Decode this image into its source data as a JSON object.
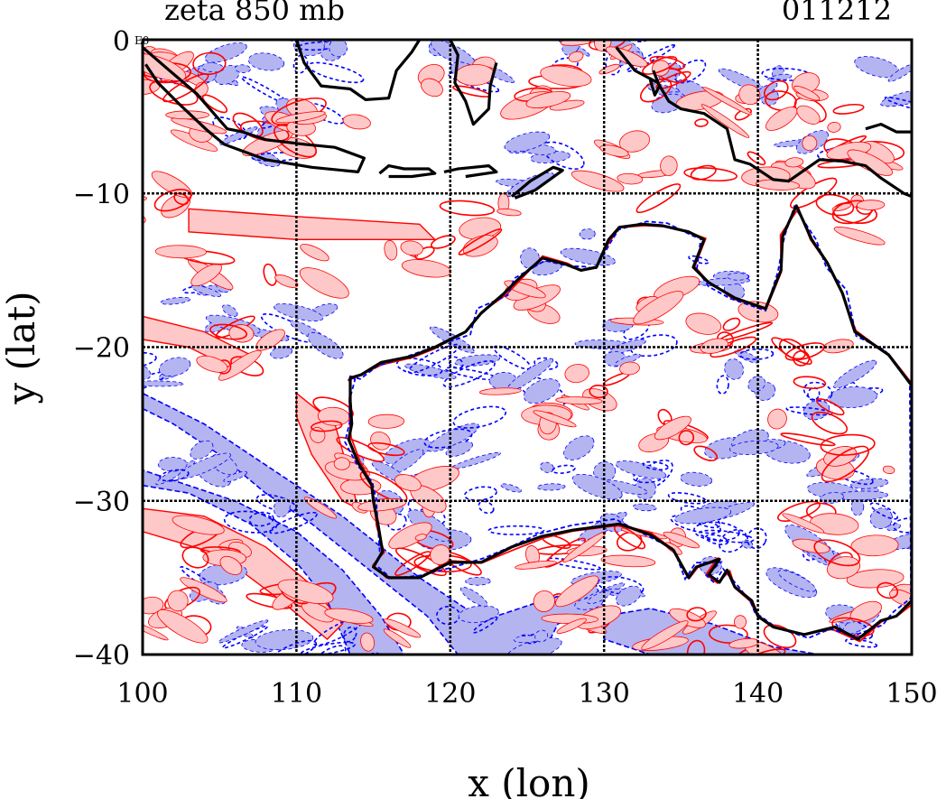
{
  "chart_data": {
    "type": "heatmap",
    "title_left": "zeta 850 mb",
    "title_right": "011212",
    "corner_label": "0",
    "corner_tag": "E0",
    "xlabel": "x (lon)",
    "ylabel": "y (lat)",
    "xlim": [
      100,
      150
    ],
    "ylim": [
      -40,
      0
    ],
    "xticks": [
      100,
      110,
      120,
      130,
      140,
      150
    ],
    "yticks": [
      -10,
      -20,
      -30,
      -40
    ],
    "xtick_labels": [
      "100",
      "110",
      "120",
      "130",
      "140",
      "150"
    ],
    "ytick_labels": [
      "−10",
      "−20",
      "−30",
      "−40"
    ],
    "grid": true,
    "colors": {
      "positive_fill": "#ffc8c8",
      "positive_line": "#ff0000",
      "negative_fill": "#b4b4f0",
      "negative_line": "#0000ff",
      "coastline": "#000000",
      "grid": "#000000"
    },
    "coastline_lonlat": [
      [
        113.5,
        -22.0
      ],
      [
        114.2,
        -21.8
      ],
      [
        115.5,
        -21.0
      ],
      [
        117.5,
        -20.6
      ],
      [
        119.0,
        -20.0
      ],
      [
        121.0,
        -19.0
      ],
      [
        122.0,
        -17.8
      ],
      [
        123.5,
        -16.5
      ],
      [
        124.5,
        -15.5
      ],
      [
        126.0,
        -14.2
      ],
      [
        127.5,
        -14.6
      ],
      [
        128.5,
        -15.0
      ],
      [
        129.5,
        -14.8
      ],
      [
        130.3,
        -13.0
      ],
      [
        131.0,
        -12.2
      ],
      [
        132.5,
        -12.0
      ],
      [
        133.8,
        -12.1
      ],
      [
        135.5,
        -12.5
      ],
      [
        136.5,
        -13.0
      ],
      [
        135.8,
        -14.8
      ],
      [
        136.8,
        -15.8
      ],
      [
        138.5,
        -16.8
      ],
      [
        140.5,
        -17.5
      ],
      [
        141.5,
        -15.0
      ],
      [
        141.6,
        -12.8
      ],
      [
        142.5,
        -10.8
      ],
      [
        143.5,
        -13.0
      ],
      [
        144.5,
        -14.5
      ],
      [
        145.5,
        -16.5
      ],
      [
        146.3,
        -19.0
      ],
      [
        148.5,
        -20.5
      ],
      [
        150.0,
        -22.5
      ],
      [
        150.0,
        -36.5
      ],
      [
        149.0,
        -37.5
      ],
      [
        148.0,
        -37.8
      ],
      [
        146.5,
        -39.0
      ],
      [
        145.0,
        -38.2
      ],
      [
        143.0,
        -38.7
      ],
      [
        141.0,
        -38.2
      ],
      [
        140.0,
        -37.5
      ],
      [
        139.6,
        -36.5
      ],
      [
        138.5,
        -35.6
      ],
      [
        138.0,
        -34.5
      ],
      [
        137.5,
        -35.3
      ],
      [
        136.8,
        -34.8
      ],
      [
        137.5,
        -33.8
      ],
      [
        136.0,
        -34.3
      ],
      [
        135.5,
        -35.0
      ],
      [
        134.5,
        -33.2
      ],
      [
        133.0,
        -32.2
      ],
      [
        131.0,
        -31.5
      ],
      [
        128.0,
        -31.9
      ],
      [
        126.0,
        -32.3
      ],
      [
        124.0,
        -33.0
      ],
      [
        122.0,
        -34.0
      ],
      [
        120.0,
        -34.0
      ],
      [
        118.0,
        -35.0
      ],
      [
        116.0,
        -35.0
      ],
      [
        115.0,
        -34.3
      ],
      [
        115.6,
        -33.3
      ],
      [
        115.3,
        -31.5
      ],
      [
        115.0,
        -30.0
      ],
      [
        114.9,
        -29.0
      ],
      [
        114.0,
        -27.5
      ],
      [
        113.4,
        -26.0
      ],
      [
        113.6,
        -25.0
      ],
      [
        113.5,
        -23.5
      ],
      [
        113.5,
        -22.0
      ]
    ],
    "islands_lonlat": [
      [
        [
          100.0,
          -0.5
        ],
        [
          101.5,
          -1.8
        ],
        [
          103.5,
          -3.5
        ],
        [
          105.5,
          -5.8
        ],
        [
          106.5,
          -6.0
        ],
        [
          108.0,
          -6.5
        ],
        [
          110.5,
          -6.8
        ],
        [
          112.5,
          -7.0
        ],
        [
          114.4,
          -7.7
        ],
        [
          114.0,
          -8.6
        ],
        [
          111.0,
          -8.3
        ],
        [
          108.0,
          -7.8
        ],
        [
          105.3,
          -6.8
        ],
        [
          104.2,
          -5.9
        ],
        [
          102.5,
          -4.3
        ],
        [
          101.0,
          -2.8
        ],
        [
          100.2,
          -1.6
        ]
      ],
      [
        [
          115.4,
          -8.7
        ],
        [
          116.0,
          -8.2
        ],
        [
          117.0,
          -8.4
        ],
        [
          118.6,
          -8.4
        ],
        [
          119.0,
          -8.7
        ],
        [
          117.5,
          -8.9
        ],
        [
          116.0,
          -8.9
        ]
      ],
      [
        [
          119.6,
          -8.6
        ],
        [
          120.5,
          -8.4
        ],
        [
          122.5,
          -8.2
        ],
        [
          123.0,
          -8.6
        ],
        [
          121.0,
          -8.9
        ]
      ],
      [
        [
          124.0,
          -10.2
        ],
        [
          125.2,
          -9.2
        ],
        [
          126.7,
          -8.3
        ],
        [
          127.3,
          -8.5
        ],
        [
          125.5,
          -9.8
        ],
        [
          124.2,
          -10.3
        ]
      ],
      [
        [
          110.0,
          0.0
        ],
        [
          110.5,
          -1.5
        ],
        [
          111.6,
          -3.0
        ],
        [
          113.5,
          -3.2
        ],
        [
          114.5,
          -3.9
        ],
        [
          116.0,
          -3.8
        ],
        [
          116.5,
          -2.0
        ],
        [
          117.5,
          -0.8
        ],
        [
          118.0,
          0.0
        ]
      ],
      [
        [
          120.0,
          0.0
        ],
        [
          120.5,
          -1.0
        ],
        [
          120.3,
          -2.8
        ],
        [
          121.0,
          -4.0
        ],
        [
          121.5,
          -5.5
        ],
        [
          122.5,
          -4.5
        ],
        [
          122.6,
          -3.0
        ],
        [
          123.0,
          -1.5
        ]
      ],
      [
        [
          130.8,
          -0.5
        ],
        [
          132.0,
          -2.0
        ],
        [
          133.5,
          -2.8
        ],
        [
          134.2,
          -4.0
        ],
        [
          135.0,
          -4.5
        ],
        [
          136.5,
          -4.8
        ],
        [
          138.0,
          -5.8
        ],
        [
          138.5,
          -7.8
        ],
        [
          139.5,
          -8.1
        ],
        [
          141.0,
          -9.1
        ],
        [
          142.0,
          -9.2
        ],
        [
          143.0,
          -8.5
        ],
        [
          144.0,
          -7.8
        ],
        [
          145.5,
          -7.9
        ],
        [
          147.0,
          -8.2
        ],
        [
          148.0,
          -9.0
        ],
        [
          149.5,
          -10.0
        ],
        [
          150.0,
          -10.2
        ]
      ],
      [
        [
          147.0,
          -5.8
        ],
        [
          148.0,
          -5.5
        ],
        [
          149.0,
          -6.0
        ],
        [
          150.0,
          -6.0
        ]
      ],
      [
        [
          133.2,
          -2.0
        ],
        [
          133.6,
          -3.0
        ],
        [
          133.3,
          -3.6
        ],
        [
          133.0,
          -2.6
        ]
      ]
    ],
    "positive_centroids_lonlat": [
      [
        101.5,
        -2.0
      ],
      [
        103.0,
        -3.0
      ],
      [
        104.5,
        -5.5
      ],
      [
        108.0,
        -6.0
      ],
      [
        112.0,
        -5.0
      ],
      [
        120.5,
        -2.5
      ],
      [
        127.0,
        -3.0
      ],
      [
        129.0,
        -1.0
      ],
      [
        133.0,
        -2.0
      ],
      [
        138.0,
        -5.0
      ],
      [
        142.0,
        -4.0
      ],
      [
        145.0,
        -5.5
      ],
      [
        147.0,
        -7.0
      ],
      [
        135.0,
        -9.0
      ],
      [
        145.0,
        -11.0
      ],
      [
        147.0,
        -12.0
      ],
      [
        103.0,
        -14.0
      ],
      [
        110.0,
        -15.0
      ],
      [
        118.0,
        -14.0
      ],
      [
        125.0,
        -17.0
      ],
      [
        133.0,
        -17.0
      ],
      [
        138.0,
        -19.0
      ],
      [
        144.0,
        -21.0
      ],
      [
        113.0,
        -25.0
      ],
      [
        116.0,
        -26.0
      ],
      [
        125.0,
        -24.0
      ],
      [
        130.0,
        -22.5
      ],
      [
        135.0,
        -26.0
      ],
      [
        143.0,
        -25.0
      ],
      [
        147.0,
        -27.0
      ],
      [
        113.0,
        -29.0
      ],
      [
        117.0,
        -30.0
      ],
      [
        119.0,
        -33.0
      ],
      [
        127.0,
        -34.0
      ],
      [
        133.0,
        -33.5
      ],
      [
        143.0,
        -32.0
      ],
      [
        147.0,
        -34.0
      ],
      [
        105.0,
        -33.0
      ],
      [
        110.0,
        -36.0
      ],
      [
        115.0,
        -38.0
      ],
      [
        128.0,
        -37.0
      ],
      [
        135.0,
        -38.5
      ],
      [
        140.0,
        -39.0
      ],
      [
        148.0,
        -37.0
      ],
      [
        102.0,
        -37.0
      ],
      [
        106.5,
        -20.0
      ],
      [
        122.0,
        -12.0
      ],
      [
        130.0,
        -8.0
      ],
      [
        141.0,
        -9.0
      ],
      [
        100.5,
        -10.0
      ]
    ],
    "negative_centroids_lonlat": [
      [
        103.0,
        -1.0
      ],
      [
        106.0,
        -2.0
      ],
      [
        112.0,
        -1.0
      ],
      [
        121.0,
        -1.5
      ],
      [
        128.5,
        -1.0
      ],
      [
        134.0,
        -3.0
      ],
      [
        140.0,
        -3.0
      ],
      [
        144.5,
        -7.5
      ],
      [
        149.0,
        -3.0
      ],
      [
        107.0,
        -6.8
      ],
      [
        126.0,
        -8.0
      ],
      [
        110.0,
        -19.0
      ],
      [
        104.0,
        -17.5
      ],
      [
        127.0,
        -13.5
      ],
      [
        137.0,
        -15.0
      ],
      [
        120.0,
        -20.5
      ],
      [
        125.0,
        -21.5
      ],
      [
        132.0,
        -20.0
      ],
      [
        139.0,
        -21.5
      ],
      [
        145.0,
        -23.0
      ],
      [
        116.0,
        -27.5
      ],
      [
        121.0,
        -26.0
      ],
      [
        128.0,
        -28.0
      ],
      [
        134.0,
        -29.0
      ],
      [
        140.0,
        -27.0
      ],
      [
        146.0,
        -29.0
      ],
      [
        104.0,
        -27.0
      ],
      [
        109.0,
        -30.0
      ],
      [
        118.0,
        -31.5
      ],
      [
        123.0,
        -30.5
      ],
      [
        130.0,
        -30.5
      ],
      [
        137.0,
        -31.5
      ],
      [
        144.0,
        -34.0
      ],
      [
        148.0,
        -32.0
      ],
      [
        121.0,
        -36.5
      ],
      [
        124.0,
        -38.5
      ],
      [
        130.0,
        -35.5
      ],
      [
        138.0,
        -33.5
      ],
      [
        147.5,
        -38.0
      ],
      [
        103.5,
        -35.5
      ],
      [
        108.0,
        -38.5
      ],
      [
        113.0,
        -39.5
      ],
      [
        100.5,
        -22.0
      ],
      [
        110.0,
        -5.0
      ],
      [
        131.0,
        -1.0
      ]
    ],
    "negative_bands_lonlat": [
      [
        [
          100.0,
          -24.0
        ],
        [
          102.0,
          -25.0
        ],
        [
          105.0,
          -27.0
        ],
        [
          108.0,
          -29.5
        ],
        [
          111.0,
          -31.5
        ],
        [
          113.5,
          -33.5
        ],
        [
          116.0,
          -35.5
        ],
        [
          118.5,
          -37.5
        ],
        [
          120.5,
          -40.0
        ],
        [
          126.0,
          -40.0
        ],
        [
          127.0,
          -38.0
        ],
        [
          130.0,
          -37.0
        ],
        [
          129.5,
          -35.5
        ],
        [
          126.0,
          -36.5
        ],
        [
          123.0,
          -37.5
        ],
        [
          121.0,
          -37.0
        ],
        [
          118.0,
          -35.0
        ],
        [
          115.5,
          -33.0
        ],
        [
          113.0,
          -31.0
        ],
        [
          110.0,
          -29.0
        ],
        [
          107.0,
          -27.0
        ],
        [
          104.0,
          -25.0
        ],
        [
          100.0,
          -23.0
        ]
      ],
      [
        [
          100.0,
          -29.0
        ],
        [
          103.0,
          -29.5
        ],
        [
          107.0,
          -31.5
        ],
        [
          110.0,
          -34.0
        ],
        [
          112.0,
          -36.5
        ],
        [
          113.5,
          -40.0
        ],
        [
          117.0,
          -40.0
        ],
        [
          115.5,
          -37.5
        ],
        [
          113.0,
          -34.5
        ],
        [
          110.0,
          -32.0
        ],
        [
          106.0,
          -30.0
        ],
        [
          100.0,
          -28.0
        ]
      ],
      [
        [
          130.0,
          -37.5
        ],
        [
          133.0,
          -37.0
        ],
        [
          137.0,
          -38.0
        ],
        [
          141.0,
          -39.5
        ],
        [
          144.0,
          -40.0
        ],
        [
          133.0,
          -40.0
        ],
        [
          130.0,
          -39.0
        ]
      ]
    ],
    "positive_bands_lonlat": [
      [
        [
          100.0,
          -19.5
        ],
        [
          103.0,
          -20.0
        ],
        [
          106.0,
          -21.5
        ],
        [
          107.0,
          -20.5
        ],
        [
          104.0,
          -19.0
        ],
        [
          100.0,
          -18.0
        ]
      ],
      [
        [
          110.0,
          -23.0
        ],
        [
          112.5,
          -25.0
        ],
        [
          113.5,
          -28.5
        ],
        [
          114.0,
          -30.5
        ],
        [
          113.0,
          -30.0
        ],
        [
          111.0,
          -27.0
        ],
        [
          110.0,
          -24.5
        ]
      ],
      [
        [
          100.0,
          -30.5
        ],
        [
          104.0,
          -31.0
        ],
        [
          108.0,
          -33.0
        ],
        [
          111.0,
          -35.5
        ],
        [
          113.0,
          -38.0
        ],
        [
          112.0,
          -39.0
        ],
        [
          109.0,
          -36.5
        ],
        [
          105.0,
          -33.5
        ],
        [
          100.0,
          -32.0
        ]
      ],
      [
        [
          103.0,
          -11.0
        ],
        [
          110.0,
          -11.5
        ],
        [
          118.0,
          -12.0
        ],
        [
          119.0,
          -13.0
        ],
        [
          110.0,
          -13.0
        ],
        [
          103.0,
          -12.5
        ]
      ]
    ]
  }
}
